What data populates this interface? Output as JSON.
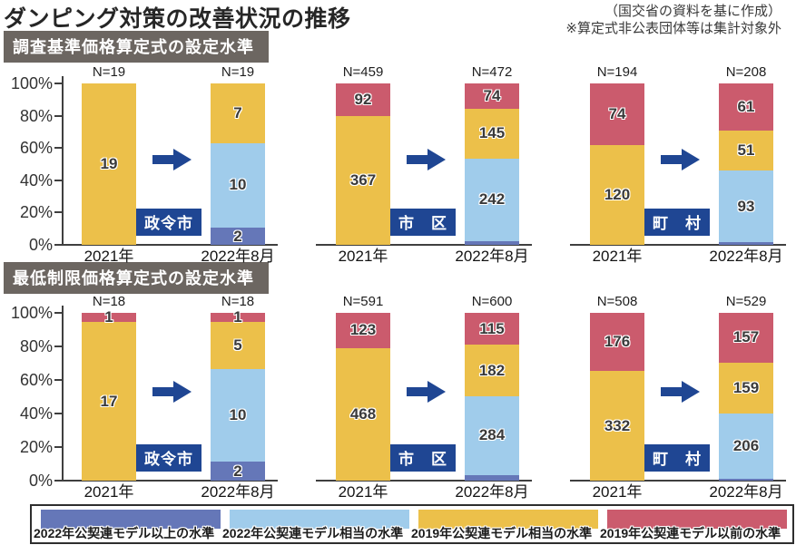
{
  "title": "ダンピング対策の改善状況の推移",
  "notes": {
    "source": "（国交省の資料を基に作成）",
    "exclusion": "※算定式非公表団体等は集計対象外"
  },
  "section_headers": [
    "調査基準価格算定式の設定水準",
    "最低制限価格算定式の設定水準"
  ],
  "colors": {
    "above_2022": "#6577b8",
    "equal_2022": "#a0cceb",
    "equal_2019": "#ecc04a",
    "before_2019": "#cb5b6d",
    "navy": "#1f4693",
    "header_gray": "#6c6661",
    "axis": "#3f3f3f"
  },
  "legend": {
    "items": [
      {
        "label": "2022年公契連モデル以上の水準",
        "color_key": "above_2022"
      },
      {
        "label": "2022年公契連モデル相当の水準",
        "color_key": "equal_2022"
      },
      {
        "label": "2019年公契連モデル相当の水準",
        "color_key": "equal_2019"
      },
      {
        "label": "2019年公契連モデル以前の水準",
        "color_key": "before_2019"
      }
    ]
  },
  "y_axis": {
    "ticks": [
      "0%",
      "20%",
      "40%",
      "60%",
      "80%",
      "100%"
    ],
    "range": [
      0,
      100
    ],
    "grid": false
  },
  "chart_data": [
    {
      "type": "bar",
      "stacked_percent": true,
      "section": "調査基準価格算定式の設定水準",
      "category": "政令市",
      "x": [
        "2021年",
        "2022年8月"
      ],
      "n_labels": [
        "N=19",
        "N=19"
      ],
      "series": [
        {
          "name": "2022年公契連モデル以上の水準",
          "key": "above_2022",
          "values": [
            0,
            2
          ]
        },
        {
          "name": "2022年公契連モデル相当の水準",
          "key": "equal_2022",
          "values": [
            0,
            10
          ]
        },
        {
          "name": "2019年公契連モデル相当の水準",
          "key": "equal_2019",
          "values": [
            19,
            7
          ]
        },
        {
          "name": "2019年公契連モデル以前の水準",
          "key": "before_2019",
          "values": [
            0,
            0
          ]
        }
      ]
    },
    {
      "type": "bar",
      "stacked_percent": true,
      "section": "調査基準価格算定式の設定水準",
      "category": "市　区",
      "x": [
        "2021年",
        "2022年8月"
      ],
      "n_labels": [
        "N=459",
        "N=472"
      ],
      "series": [
        {
          "name": "2022年公契連モデル以上の水準",
          "key": "above_2022",
          "values": [
            0,
            11
          ]
        },
        {
          "name": "2022年公契連モデル相当の水準",
          "key": "equal_2022",
          "values": [
            0,
            242
          ]
        },
        {
          "name": "2019年公契連モデル相当の水準",
          "key": "equal_2019",
          "values": [
            367,
            145
          ]
        },
        {
          "name": "2019年公契連モデル以前の水準",
          "key": "before_2019",
          "values": [
            92,
            74
          ]
        }
      ]
    },
    {
      "type": "bar",
      "stacked_percent": true,
      "section": "調査基準価格算定式の設定水準",
      "category": "町　村",
      "x": [
        "2021年",
        "2022年8月"
      ],
      "n_labels": [
        "N=194",
        "N=208"
      ],
      "series": [
        {
          "name": "2022年公契連モデル以上の水準",
          "key": "above_2022",
          "values": [
            0,
            3
          ]
        },
        {
          "name": "2022年公契連モデル相当の水準",
          "key": "equal_2022",
          "values": [
            0,
            93
          ]
        },
        {
          "name": "2019年公契連モデル相当の水準",
          "key": "equal_2019",
          "values": [
            120,
            51
          ]
        },
        {
          "name": "2019年公契連モデル以前の水準",
          "key": "before_2019",
          "values": [
            74,
            61
          ]
        }
      ]
    },
    {
      "type": "bar",
      "stacked_percent": true,
      "section": "最低制限価格算定式の設定水準",
      "category": "政令市",
      "x": [
        "2021年",
        "2022年8月"
      ],
      "n_labels": [
        "N=18",
        "N=18"
      ],
      "series": [
        {
          "name": "2022年公契連モデル以上の水準",
          "key": "above_2022",
          "values": [
            0,
            2
          ]
        },
        {
          "name": "2022年公契連モデル相当の水準",
          "key": "equal_2022",
          "values": [
            0,
            10
          ]
        },
        {
          "name": "2019年公契連モデル相当の水準",
          "key": "equal_2019",
          "values": [
            17,
            5
          ]
        },
        {
          "name": "2019年公契連モデル以前の水準",
          "key": "before_2019",
          "values": [
            1,
            1
          ]
        }
      ]
    },
    {
      "type": "bar",
      "stacked_percent": true,
      "section": "最低制限価格算定式の設定水準",
      "category": "市　区",
      "x": [
        "2021年",
        "2022年8月"
      ],
      "n_labels": [
        "N=591",
        "N=600"
      ],
      "series": [
        {
          "name": "2022年公契連モデル以上の水準",
          "key": "above_2022",
          "values": [
            0,
            19
          ]
        },
        {
          "name": "2022年公契連モデル相当の水準",
          "key": "equal_2022",
          "values": [
            0,
            284
          ]
        },
        {
          "name": "2019年公契連モデル相当の水準",
          "key": "equal_2019",
          "values": [
            468,
            182
          ]
        },
        {
          "name": "2019年公契連モデル以前の水準",
          "key": "before_2019",
          "values": [
            123,
            115
          ]
        }
      ]
    },
    {
      "type": "bar",
      "stacked_percent": true,
      "section": "最低制限価格算定式の設定水準",
      "category": "町　村",
      "x": [
        "2021年",
        "2022年8月"
      ],
      "n_labels": [
        "N=508",
        "N=529"
      ],
      "series": [
        {
          "name": "2022年公契連モデル以上の水準",
          "key": "above_2022",
          "values": [
            0,
            7
          ]
        },
        {
          "name": "2022年公契連モデル相当の水準",
          "key": "equal_2022",
          "values": [
            0,
            206
          ]
        },
        {
          "name": "2019年公契連モデル相当の水準",
          "key": "equal_2019",
          "values": [
            332,
            159
          ]
        },
        {
          "name": "2019年公契連モデル以前の水準",
          "key": "before_2019",
          "values": [
            176,
            157
          ]
        }
      ]
    }
  ]
}
